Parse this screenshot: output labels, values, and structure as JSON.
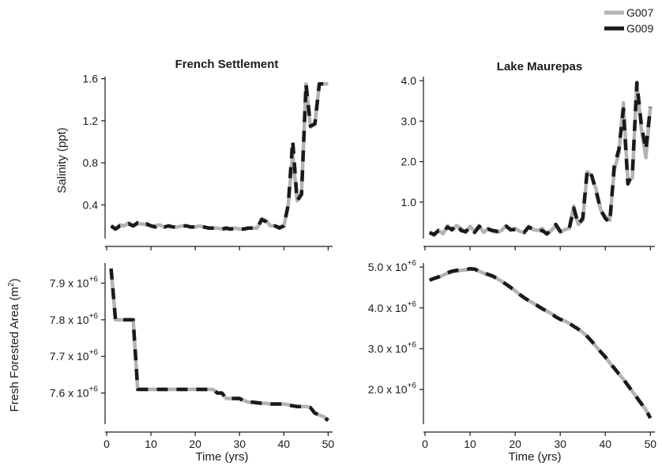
{
  "legend": {
    "position": "top-right",
    "entries": [
      {
        "label": "G007",
        "color": "#b3b3b3"
      },
      {
        "label": "G009",
        "color": "#1a1a1a"
      }
    ]
  },
  "shared": {
    "xlabel": "Time (yrs)",
    "ylabel_top": "Salinity (ppt)",
    "ylabel_bottom_main": "Fresh Forested Area (m",
    "ylabel_bottom_sup": "2",
    "ylabel_bottom_end": ")",
    "sci_base": "x 10",
    "sci_exp": "+6"
  },
  "chart_data": [
    {
      "type": "line",
      "panel": "top-left",
      "title": "French Settlement",
      "xlabel": "",
      "ylabel": "Salinity (ppt)",
      "xlim": [
        0,
        51
      ],
      "ylim": [
        0.08,
        1.62
      ],
      "xticks": [
        0,
        10,
        20,
        30,
        40,
        50
      ],
      "xtick_labels": [
        "",
        "",
        "",
        "",
        "",
        ""
      ],
      "yticks": [
        0.4,
        0.8,
        1.2,
        1.6
      ],
      "ytick_labels": [
        "0.4",
        "0.8",
        "1.2",
        "1.6"
      ],
      "x": [
        1,
        2,
        3,
        4,
        5,
        6,
        7,
        8,
        9,
        10,
        11,
        12,
        13,
        14,
        15,
        16,
        17,
        18,
        19,
        20,
        21,
        22,
        23,
        24,
        25,
        26,
        27,
        28,
        29,
        30,
        31,
        32,
        33,
        34,
        35,
        36,
        37,
        38,
        39,
        40,
        41,
        42,
        43,
        44,
        45,
        46,
        47,
        48,
        49,
        50
      ],
      "series": [
        {
          "name": "G007",
          "values": [
            0.2,
            0.17,
            0.21,
            0.2,
            0.23,
            0.2,
            0.22,
            0.22,
            0.21,
            0.2,
            0.2,
            0.21,
            0.19,
            0.2,
            0.19,
            0.19,
            0.2,
            0.2,
            0.19,
            0.19,
            0.2,
            0.19,
            0.18,
            0.18,
            0.18,
            0.17,
            0.17,
            0.17,
            0.18,
            0.17,
            0.17,
            0.18,
            0.18,
            0.18,
            0.27,
            0.25,
            0.2,
            0.2,
            0.19,
            0.2,
            0.4,
            0.88,
            0.44,
            0.52,
            1.55,
            1.14,
            1.17,
            1.55,
            1.55,
            1.55
          ]
        },
        {
          "name": "G009",
          "values": [
            0.2,
            0.17,
            0.2,
            0.2,
            0.22,
            0.2,
            0.23,
            0.21,
            0.22,
            0.2,
            0.19,
            0.21,
            0.19,
            0.2,
            0.19,
            0.19,
            0.2,
            0.2,
            0.19,
            0.19,
            0.2,
            0.19,
            0.18,
            0.18,
            0.18,
            0.17,
            0.18,
            0.17,
            0.18,
            0.17,
            0.17,
            0.18,
            0.18,
            0.18,
            0.26,
            0.24,
            0.2,
            0.2,
            0.18,
            0.2,
            0.4,
            1.01,
            0.44,
            0.5,
            1.55,
            1.15,
            1.17,
            1.55,
            1.55,
            1.55
          ]
        }
      ]
    },
    {
      "type": "line",
      "panel": "top-right",
      "title": "Lake Maurepas",
      "xlabel": "",
      "ylabel": "",
      "xlim": [
        0,
        51
      ],
      "ylim": [
        0.1,
        4.1
      ],
      "xticks": [
        0,
        10,
        20,
        30,
        40,
        50
      ],
      "xtick_labels": [
        "",
        "",
        "",
        "",
        "",
        ""
      ],
      "yticks": [
        1.0,
        2.0,
        3.0,
        4.0
      ],
      "ytick_labels": [
        "1.0",
        "2.0",
        "3.0",
        "4.0"
      ],
      "x": [
        1,
        2,
        3,
        4,
        5,
        6,
        7,
        8,
        9,
        10,
        11,
        12,
        13,
        14,
        15,
        16,
        17,
        18,
        19,
        20,
        21,
        22,
        23,
        24,
        25,
        26,
        27,
        28,
        29,
        30,
        31,
        32,
        33,
        34,
        35,
        36,
        37,
        38,
        39,
        40,
        41,
        42,
        43,
        44,
        45,
        46,
        47,
        48,
        49,
        50
      ],
      "series": [
        {
          "name": "G007",
          "values": [
            0.25,
            0.18,
            0.3,
            0.22,
            0.42,
            0.3,
            0.42,
            0.35,
            0.25,
            0.4,
            0.27,
            0.42,
            0.25,
            0.35,
            0.28,
            0.25,
            0.3,
            0.42,
            0.3,
            0.35,
            0.28,
            0.25,
            0.4,
            0.32,
            0.3,
            0.35,
            0.2,
            0.3,
            0.42,
            0.25,
            0.32,
            0.35,
            0.9,
            0.45,
            0.55,
            1.75,
            1.65,
            1.3,
            0.8,
            0.65,
            0.55,
            1.8,
            2.2,
            3.45,
            1.55,
            1.6,
            3.95,
            2.8,
            2.1,
            3.35
          ]
        },
        {
          "name": "G009",
          "values": [
            0.25,
            0.2,
            0.3,
            0.25,
            0.38,
            0.32,
            0.45,
            0.3,
            0.27,
            0.38,
            0.25,
            0.4,
            0.28,
            0.33,
            0.3,
            0.28,
            0.3,
            0.4,
            0.32,
            0.32,
            0.3,
            0.25,
            0.38,
            0.33,
            0.28,
            0.3,
            0.22,
            0.3,
            0.45,
            0.28,
            0.3,
            0.35,
            0.85,
            0.45,
            0.6,
            1.8,
            1.65,
            1.25,
            0.8,
            0.6,
            0.5,
            1.9,
            2.3,
            3.3,
            1.45,
            1.7,
            3.95,
            2.9,
            2.3,
            3.35
          ]
        }
      ]
    },
    {
      "type": "line",
      "panel": "bottom-left",
      "title": "",
      "xlabel": "Time (yrs)",
      "ylabel": "Fresh Forested Area (m2)",
      "xlim": [
        0,
        51
      ],
      "ylim": [
        7.515,
        7.955
      ],
      "xticks": [
        0,
        10,
        20,
        30,
        40,
        50
      ],
      "xtick_labels": [
        "0",
        "10",
        "20",
        "30",
        "40",
        "50"
      ],
      "yticks": [
        7.6,
        7.7,
        7.8,
        7.9
      ],
      "ytick_labels": [
        "7.6",
        "7.7",
        "7.8",
        "7.9"
      ],
      "x": [
        1,
        2,
        3,
        4,
        5,
        6,
        7,
        8,
        9,
        10,
        11,
        12,
        13,
        14,
        15,
        16,
        17,
        18,
        19,
        20,
        21,
        22,
        23,
        24,
        25,
        26,
        27,
        28,
        29,
        30,
        31,
        32,
        33,
        34,
        35,
        36,
        37,
        38,
        39,
        40,
        41,
        42,
        43,
        44,
        45,
        46,
        47,
        48,
        49,
        50
      ],
      "series": [
        {
          "name": "G007",
          "values": [
            7.94,
            7.8,
            7.8,
            7.8,
            7.8,
            7.8,
            7.61,
            7.61,
            7.61,
            7.61,
            7.61,
            7.61,
            7.61,
            7.61,
            7.61,
            7.61,
            7.61,
            7.61,
            7.61,
            7.61,
            7.61,
            7.61,
            7.61,
            7.61,
            7.6,
            7.6,
            7.585,
            7.585,
            7.585,
            7.585,
            7.58,
            7.575,
            7.575,
            7.575,
            7.572,
            7.572,
            7.57,
            7.57,
            7.57,
            7.57,
            7.568,
            7.565,
            7.563,
            7.563,
            7.563,
            7.56,
            7.545,
            7.54,
            7.535,
            7.525
          ]
        },
        {
          "name": "G009",
          "values": [
            7.94,
            7.8,
            7.8,
            7.8,
            7.8,
            7.8,
            7.61,
            7.61,
            7.61,
            7.61,
            7.61,
            7.61,
            7.61,
            7.61,
            7.61,
            7.61,
            7.61,
            7.61,
            7.61,
            7.61,
            7.61,
            7.61,
            7.61,
            7.61,
            7.6,
            7.6,
            7.585,
            7.585,
            7.585,
            7.585,
            7.578,
            7.575,
            7.575,
            7.573,
            7.572,
            7.571,
            7.57,
            7.57,
            7.57,
            7.57,
            7.567,
            7.565,
            7.563,
            7.563,
            7.563,
            7.56,
            7.545,
            7.54,
            7.535,
            7.525
          ]
        }
      ]
    },
    {
      "type": "line",
      "panel": "bottom-right",
      "title": "",
      "xlabel": "Time (yrs)",
      "ylabel": "",
      "xlim": [
        0,
        51
      ],
      "ylim": [
        1.15,
        5.1
      ],
      "xticks": [
        0,
        10,
        20,
        30,
        40,
        50
      ],
      "xtick_labels": [
        "0",
        "10",
        "20",
        "30",
        "40",
        "50"
      ],
      "yticks": [
        2.0,
        3.0,
        4.0,
        5.0
      ],
      "ytick_labels": [
        "2.0",
        "3.0",
        "4.0",
        "5.0"
      ],
      "x": [
        1,
        2,
        3,
        4,
        5,
        6,
        7,
        8,
        9,
        10,
        11,
        12,
        13,
        14,
        15,
        16,
        17,
        18,
        19,
        20,
        21,
        22,
        23,
        24,
        25,
        26,
        27,
        28,
        29,
        30,
        31,
        32,
        33,
        34,
        35,
        36,
        37,
        38,
        39,
        40,
        41,
        42,
        43,
        44,
        45,
        46,
        47,
        48,
        49,
        50
      ],
      "series": [
        {
          "name": "G007",
          "values": [
            4.68,
            4.72,
            4.75,
            4.8,
            4.85,
            4.88,
            4.9,
            4.92,
            4.93,
            4.95,
            4.95,
            4.9,
            4.85,
            4.82,
            4.78,
            4.72,
            4.65,
            4.58,
            4.5,
            4.42,
            4.33,
            4.25,
            4.18,
            4.12,
            4.05,
            3.98,
            3.92,
            3.86,
            3.78,
            3.72,
            3.68,
            3.62,
            3.55,
            3.48,
            3.4,
            3.3,
            3.18,
            3.05,
            2.92,
            2.8,
            2.65,
            2.52,
            2.38,
            2.25,
            2.1,
            1.95,
            1.8,
            1.65,
            1.5,
            1.3
          ]
        },
        {
          "name": "G009",
          "values": [
            4.68,
            4.72,
            4.76,
            4.82,
            4.86,
            4.9,
            4.92,
            4.93,
            4.94,
            4.96,
            4.95,
            4.9,
            4.86,
            4.82,
            4.78,
            4.72,
            4.65,
            4.58,
            4.5,
            4.42,
            4.33,
            4.25,
            4.18,
            4.12,
            4.05,
            3.98,
            3.92,
            3.86,
            3.78,
            3.72,
            3.68,
            3.62,
            3.55,
            3.48,
            3.4,
            3.3,
            3.18,
            3.05,
            2.92,
            2.8,
            2.65,
            2.52,
            2.38,
            2.25,
            2.1,
            1.95,
            1.8,
            1.65,
            1.5,
            1.3
          ]
        }
      ]
    }
  ]
}
